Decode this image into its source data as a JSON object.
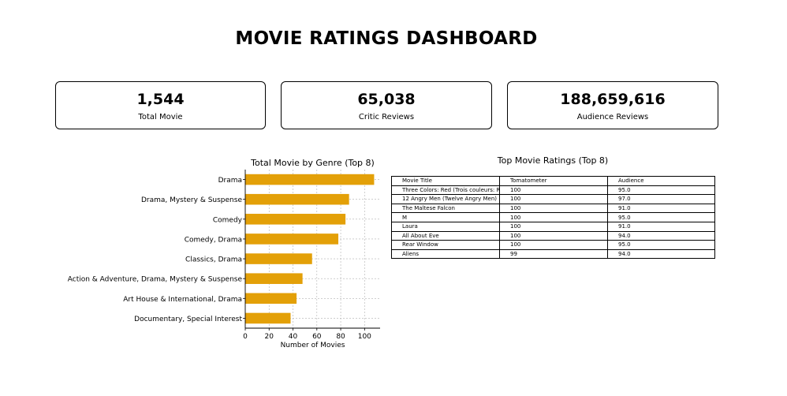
{
  "dashboard": {
    "title": "MOVIE RATINGS DASHBOARD"
  },
  "kpis": [
    {
      "value": "1,544",
      "label": "Total Movie"
    },
    {
      "value": "65,038",
      "label": "Critic Reviews"
    },
    {
      "value": "188,659,616",
      "label": "Audience Reviews"
    }
  ],
  "chart_data": {
    "type": "bar",
    "orientation": "horizontal",
    "title": "Total Movie by Genre (Top 8)",
    "xlabel": "Number of Movies",
    "ylabel": "",
    "categories": [
      "Drama",
      "Drama, Mystery & Suspense",
      "Comedy",
      "Comedy, Drama",
      "Classics, Drama",
      "Action & Adventure, Drama, Mystery & Suspense",
      "Art House & International, Drama",
      "Documentary, Special Interest"
    ],
    "values": [
      108,
      87,
      84,
      78,
      56,
      48,
      43,
      38
    ],
    "xlim": [
      0,
      113
    ],
    "xticks": [
      0,
      20,
      40,
      60,
      80,
      100
    ],
    "grid": true,
    "bar_color": "#E3A008"
  },
  "table": {
    "title": "Top Movie Ratings (Top 8)",
    "columns": [
      "Movie Title",
      "Tomatometer",
      "Audience"
    ],
    "rows": [
      [
        "Three Colors: Red (Trois couleurs: Rouge)",
        "100",
        "95.0"
      ],
      [
        "12 Angry Men (Twelve Angry Men)",
        "100",
        "97.0"
      ],
      [
        "The Maltese Falcon",
        "100",
        "91.0"
      ],
      [
        "M",
        "100",
        "95.0"
      ],
      [
        "Laura",
        "100",
        "91.0"
      ],
      [
        "All About Eve",
        "100",
        "94.0"
      ],
      [
        "Rear Window",
        "100",
        "95.0"
      ],
      [
        "Aliens",
        "99",
        "94.0"
      ]
    ]
  }
}
